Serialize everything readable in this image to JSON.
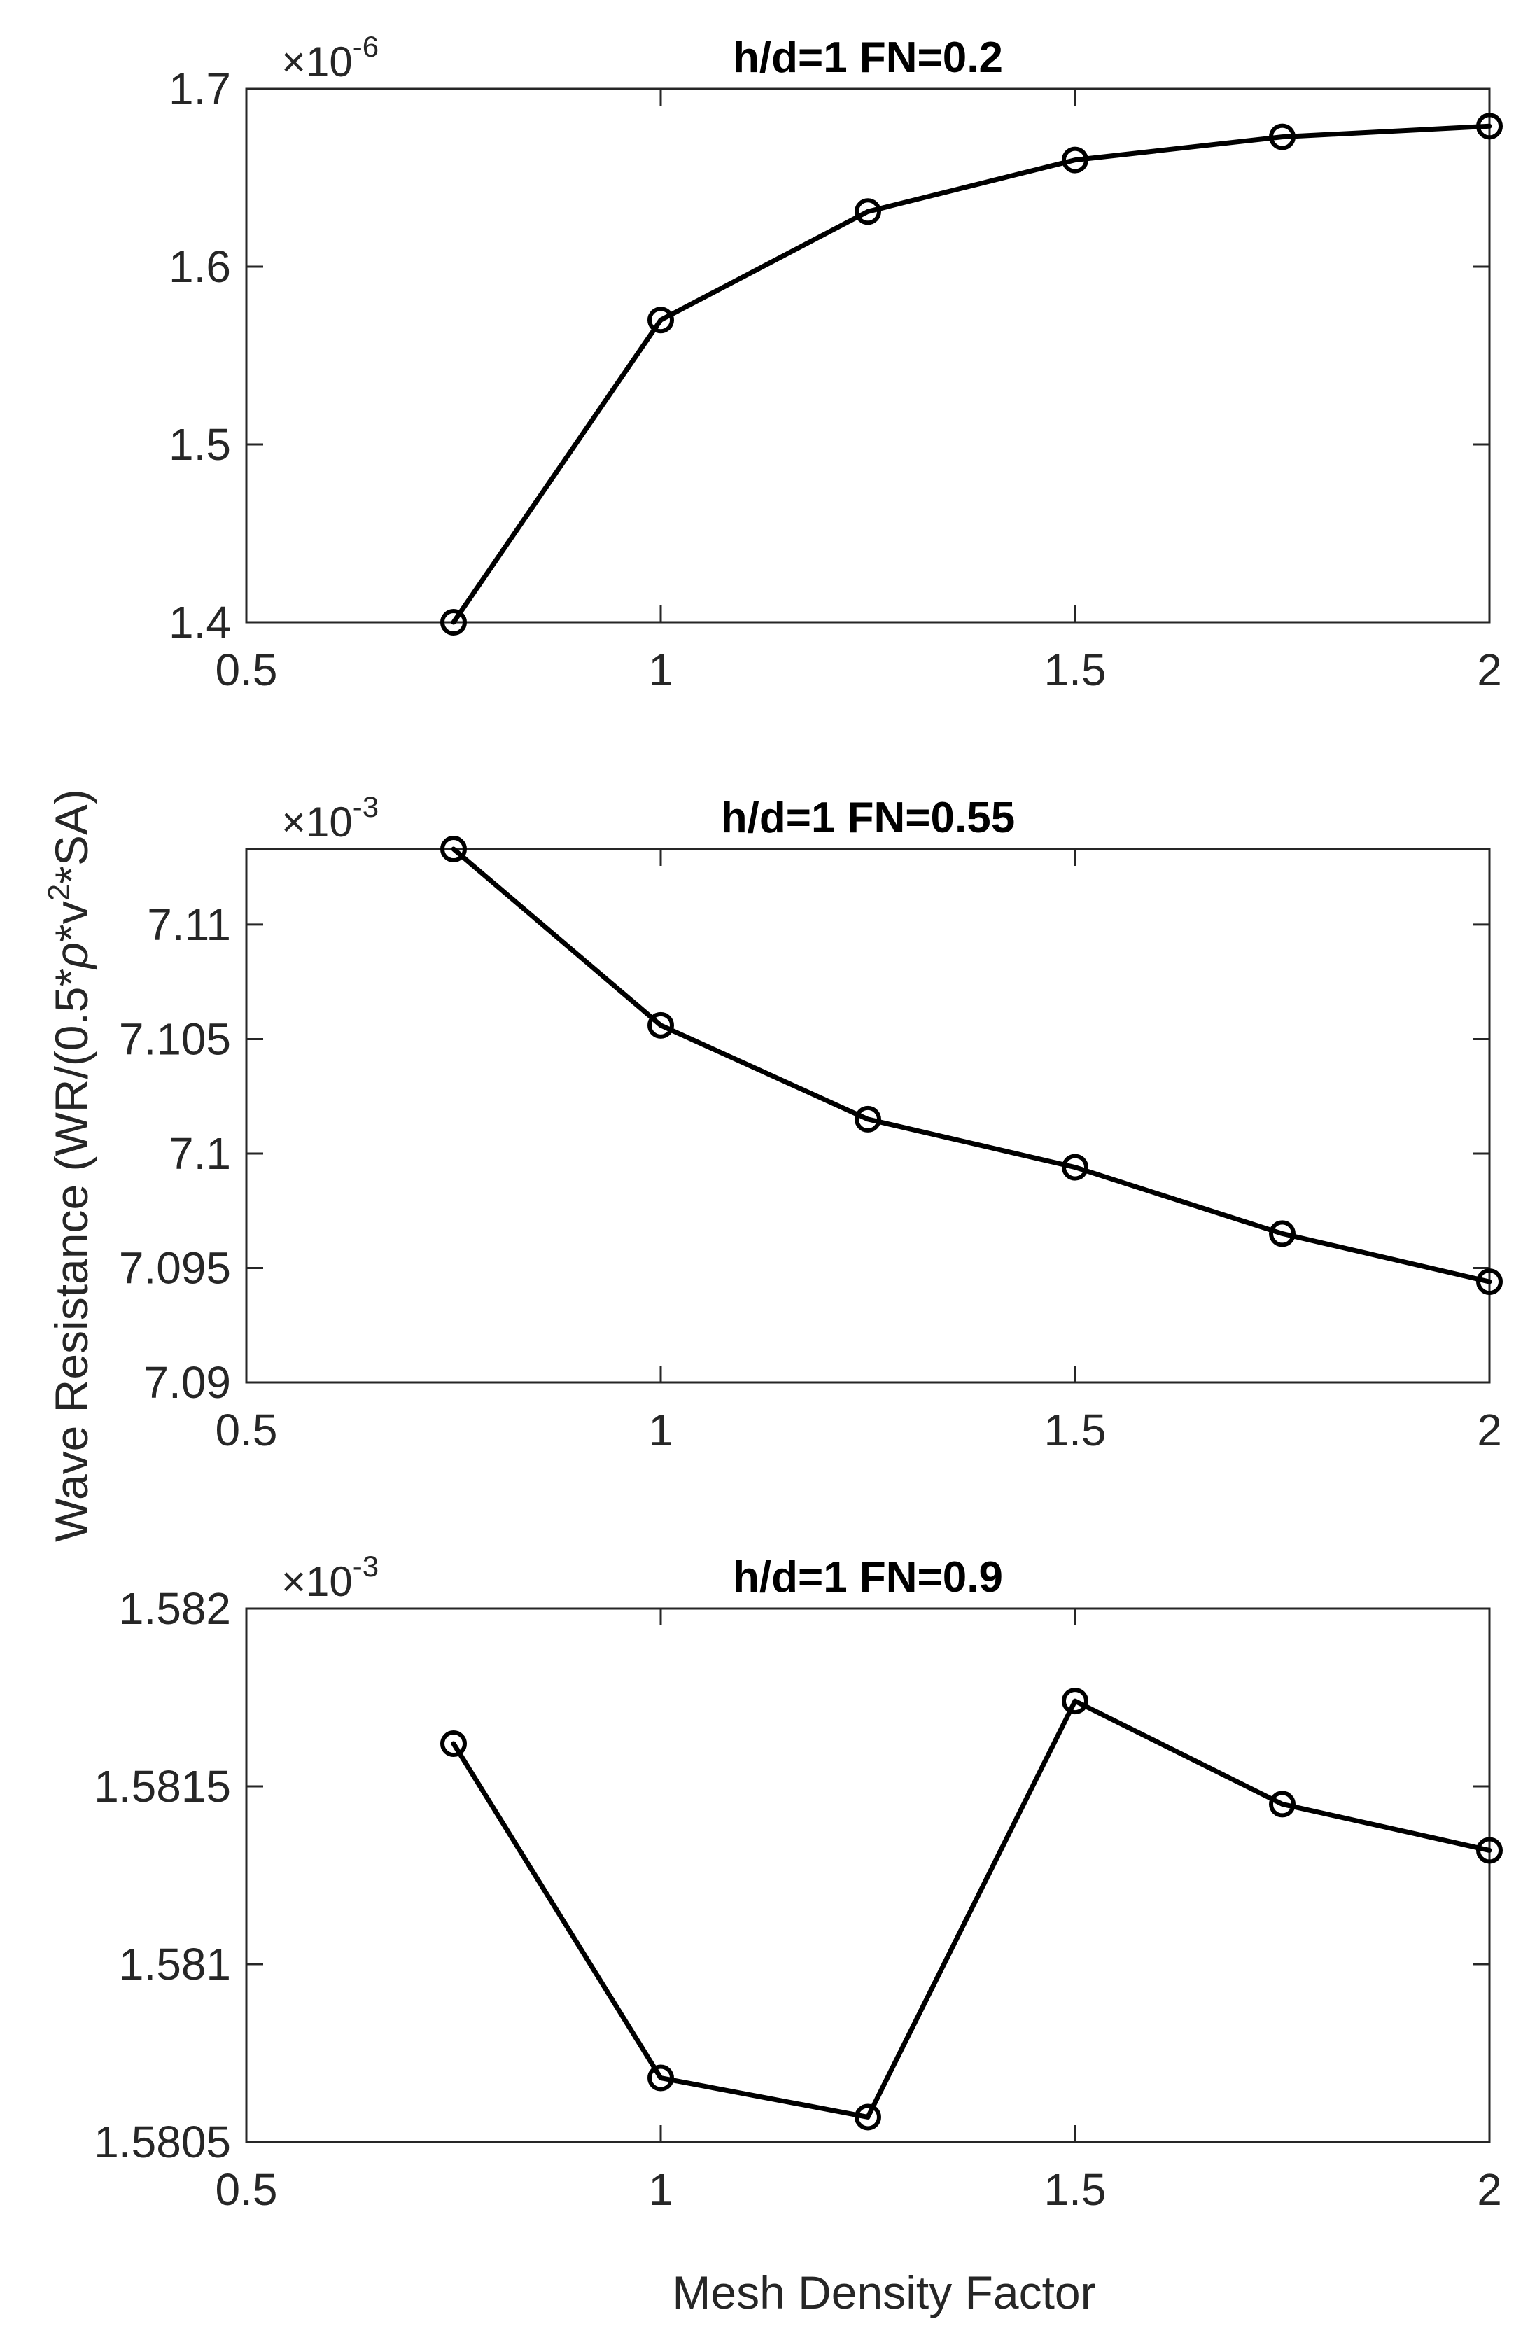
{
  "chart_data": [
    {
      "type": "line",
      "title": "h/d=1 FN=0.2",
      "multiplier": {
        "base": "×10",
        "exponent": "-6"
      },
      "x": [
        0.75,
        1,
        1.25,
        1.5,
        1.75,
        2
      ],
      "values": [
        1.4,
        1.57,
        1.631,
        1.66,
        1.673,
        1.679
      ],
      "xlim": [
        0.5,
        2
      ],
      "ylim": [
        1.4,
        1.7
      ],
      "xticks": [
        0.5,
        1,
        1.5,
        2
      ],
      "xtick_labels": [
        "0.5",
        "1",
        "1.5",
        "2"
      ],
      "yticks": [
        1.4,
        1.5,
        1.6,
        1.7
      ],
      "ytick_labels": [
        "1.4",
        "1.5",
        "1.6",
        "1.7"
      ],
      "marker": "circle",
      "grid": false
    },
    {
      "type": "line",
      "title": "h/d=1 FN=0.55",
      "multiplier": {
        "base": "×10",
        "exponent": "-3"
      },
      "x": [
        0.75,
        1,
        1.25,
        1.5,
        1.75,
        2
      ],
      "values": [
        7.1133,
        7.1056,
        7.1015,
        7.0994,
        7.0965,
        7.0944
      ],
      "xlim": [
        0.5,
        2
      ],
      "ylim": [
        7.09,
        7.1133
      ],
      "xticks": [
        0.5,
        1,
        1.5,
        2
      ],
      "xtick_labels": [
        "0.5",
        "1",
        "1.5",
        "2"
      ],
      "yticks": [
        7.09,
        7.095,
        7.1,
        7.105,
        7.11
      ],
      "ytick_labels": [
        "7.09",
        "7.095",
        "7.1",
        "7.105",
        "7.11"
      ],
      "marker": "circle",
      "grid": false
    },
    {
      "type": "line",
      "title": "h/d=1 FN=0.9",
      "multiplier": {
        "base": "×10",
        "exponent": "-3"
      },
      "x": [
        0.75,
        1,
        1.25,
        1.5,
        1.75,
        2
      ],
      "values": [
        1.58162,
        1.58068,
        1.58057,
        1.58174,
        1.58145,
        1.58132
      ],
      "xlim": [
        0.5,
        2
      ],
      "ylim": [
        1.5805,
        1.582
      ],
      "xticks": [
        0.5,
        1,
        1.5,
        2
      ],
      "xtick_labels": [
        "0.5",
        "1",
        "1.5",
        "2"
      ],
      "yticks": [
        1.5805,
        1.581,
        1.5815,
        1.582
      ],
      "ytick_labels": [
        "1.5805",
        "1.581",
        "1.5815",
        "1.582"
      ],
      "marker": "circle",
      "grid": false
    }
  ],
  "axes": {
    "xlabel": "Mesh Density Factor",
    "ylabel_parts": [
      "Wave Resistance (WR/(0.5*",
      "ρ",
      "*v",
      "2",
      "*SA)"
    ]
  },
  "colors": {
    "series": "#000000",
    "axes": "#262626",
    "background": "#ffffff"
  }
}
